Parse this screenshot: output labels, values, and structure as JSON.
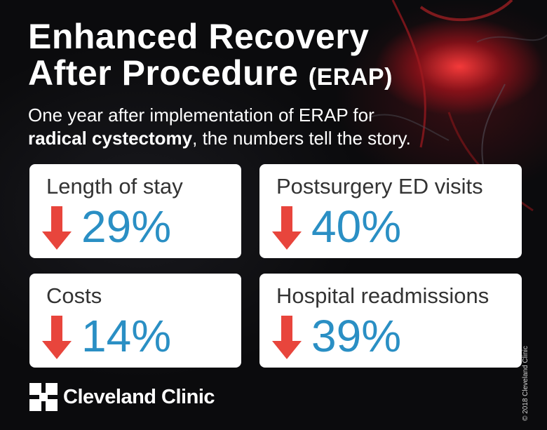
{
  "title": {
    "line1": "Enhanced Recovery",
    "line2": "After Procedure",
    "abbr": "(ERAP)"
  },
  "subtitle": {
    "part1": "One year after implementation of ERAP for",
    "bold": "radical cystectomy",
    "part2": ", the numbers tell the story."
  },
  "stats": [
    {
      "label": "Length of stay",
      "value": "29%",
      "direction": "down"
    },
    {
      "label": "Postsurgery ED visits",
      "value": "40%",
      "direction": "down"
    },
    {
      "label": "Costs",
      "value": "14%",
      "direction": "down"
    },
    {
      "label": "Hospital readmissions",
      "value": "39%",
      "direction": "down"
    }
  ],
  "logo": {
    "text": "Cleveland Clinic"
  },
  "copyright": "© 2018 Cleveland Clinic",
  "colors": {
    "background": "#0b0b0d",
    "card": "#ffffff",
    "value_blue": "#2a8fc4",
    "arrow_red": "#e8453c",
    "label_text": "#333333"
  }
}
